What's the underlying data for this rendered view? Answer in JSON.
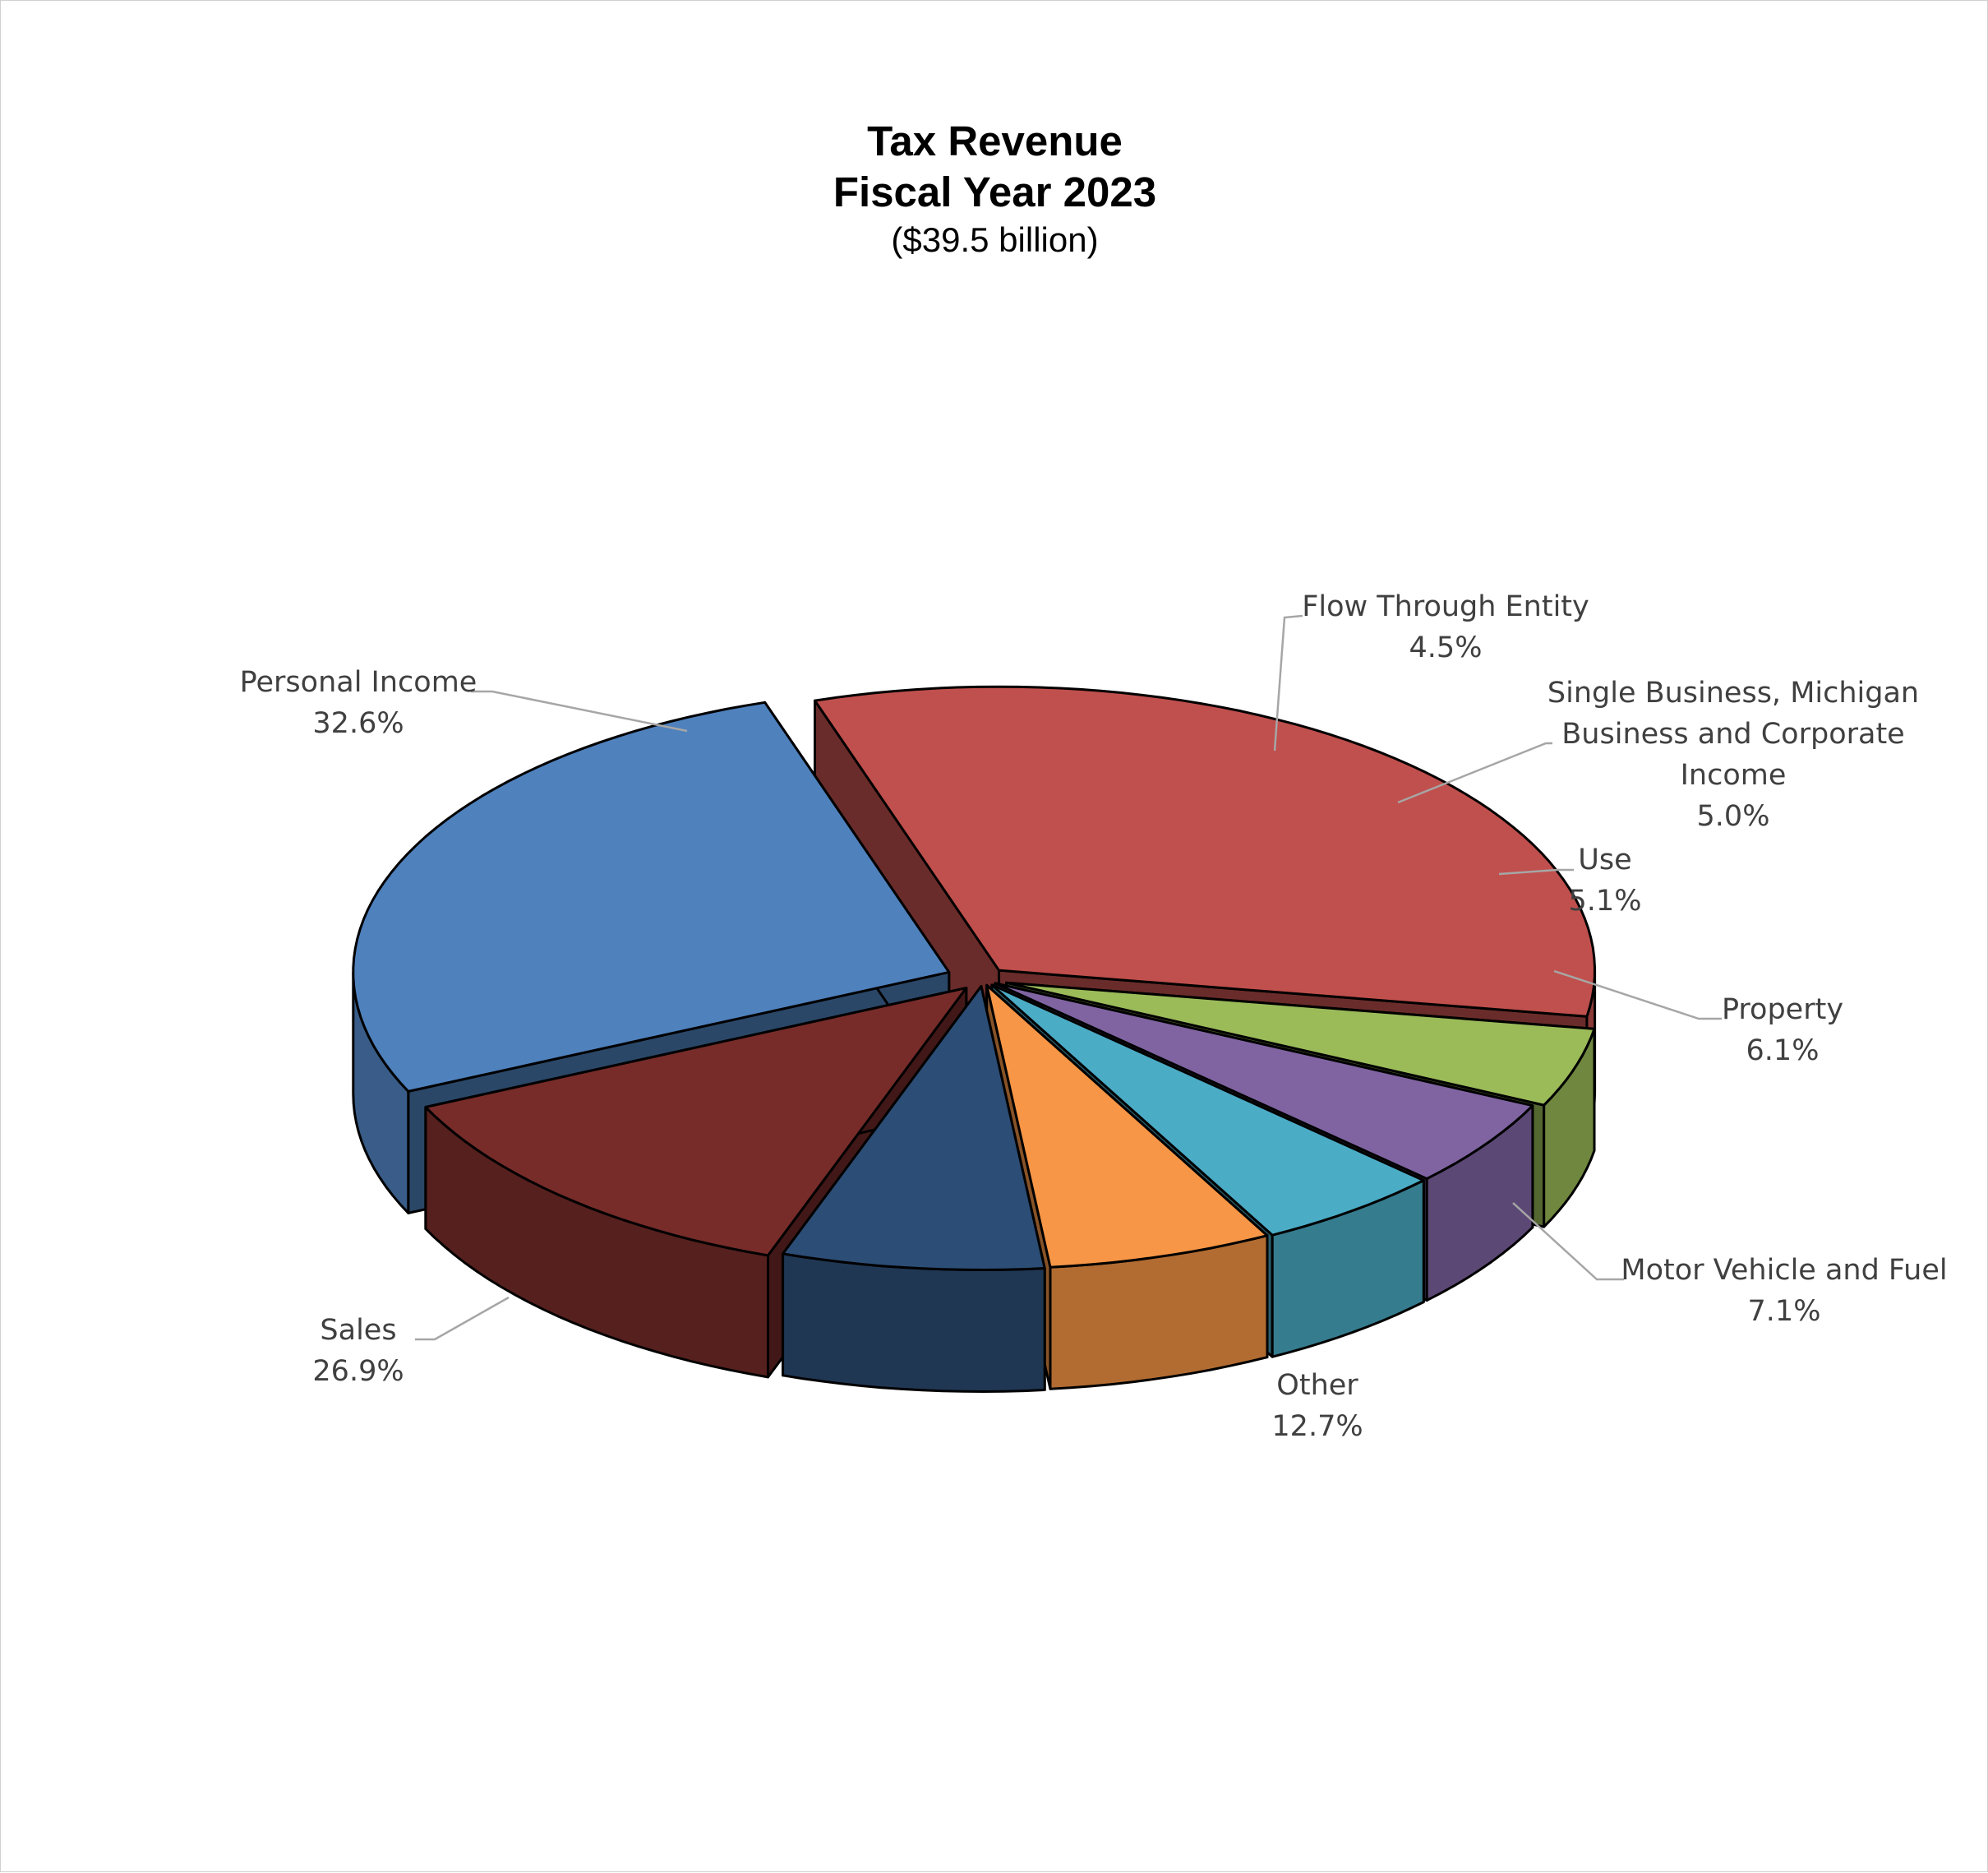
{
  "chart_data": {
    "type": "pie",
    "title": "Tax Revenue",
    "subtitle": "Fiscal Year 2023",
    "note": "($39.5 billion)",
    "slices": [
      {
        "label": "Personal Income",
        "value": 32.6,
        "value_label": "32.6%",
        "color": "#C0504D",
        "label_lines": [
          "Personal Income"
        ]
      },
      {
        "label": "Flow Through Entity",
        "value": 4.5,
        "value_label": "4.5%",
        "color": "#9BBB59",
        "label_lines": [
          "Flow Through Entity"
        ]
      },
      {
        "label": "Single Business, Michigan Business and Corporate Income",
        "value": 5.0,
        "value_label": "5.0%",
        "color": "#8064A2",
        "label_lines": [
          "Single Business, Michigan",
          "Business and Corporate",
          "Income"
        ]
      },
      {
        "label": "Use",
        "value": 5.1,
        "value_label": "5.1%",
        "color": "#4BACC6",
        "label_lines": [
          "Use"
        ]
      },
      {
        "label": "Property",
        "value": 6.1,
        "value_label": "6.1%",
        "color": "#F79646",
        "label_lines": [
          "Property"
        ]
      },
      {
        "label": "Motor Vehicle and Fuel",
        "value": 7.1,
        "value_label": "7.1%",
        "color": "#2C4D75",
        "label_lines": [
          "Motor Vehicle and Fuel"
        ]
      },
      {
        "label": "Other",
        "value": 12.7,
        "value_label": "12.7%",
        "color": "#772C2A",
        "label_lines": [
          "Other"
        ]
      },
      {
        "label": "Sales",
        "value": 26.9,
        "value_label": "26.9%",
        "color": "#4F81BD",
        "label_lines": [
          "Sales"
        ]
      }
    ],
    "legend": "none",
    "style": "3d-exploded"
  }
}
